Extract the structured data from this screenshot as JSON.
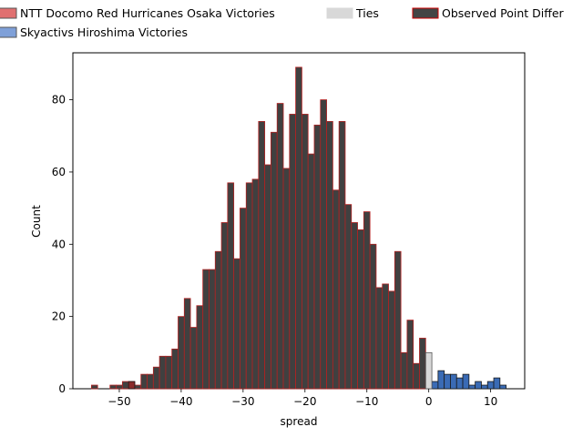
{
  "chart_data": {
    "type": "bar",
    "title": "",
    "xlabel": "spread",
    "ylabel": "Count",
    "xlim": [
      -57.5,
      15.5
    ],
    "ylim": [
      0,
      93
    ],
    "xticks": [
      -50,
      -40,
      -30,
      -20,
      -10,
      0,
      10
    ],
    "yticks": [
      0,
      20,
      40,
      60,
      80
    ],
    "xtick_labels": [
      "−50",
      "−40",
      "−30",
      "−20",
      "−10",
      "0",
      "10"
    ],
    "ytick_labels": [
      "0",
      "20",
      "40",
      "60",
      "80"
    ],
    "grid": false,
    "legend_placement": "top",
    "legend": [
      {
        "label": "NTT Docomo Red Hurricanes Osaka Victories",
        "color": "#e07070",
        "edge": "#555555"
      },
      {
        "label": "Skyactivs Hiroshima Victories",
        "color": "#7fa0d8",
        "edge": "#555555"
      },
      {
        "label": "Ties",
        "color": "#d8d8d8",
        "edge": "#d8d8d8"
      },
      {
        "label": "Observed Point Differ",
        "color": "#444444",
        "edge": "#cc0000"
      }
    ],
    "colors": {
      "observed_fill": "#404040",
      "observed_edge": "#b22222",
      "skyactivs_fill": "#3a6bb5",
      "ties_fill": "#d8d8d8",
      "ntt_fill": "#8b2a2a"
    },
    "series": [
      {
        "name": "Observed Point Differ",
        "x": [
          -54,
          -51,
          -50,
          -49,
          -48,
          -47,
          -46,
          -45,
          -44,
          -43,
          -42,
          -41,
          -40,
          -39,
          -38,
          -37,
          -36,
          -35,
          -34,
          -33,
          -32,
          -31,
          -30,
          -29,
          -28,
          -27,
          -26,
          -25,
          -24,
          -23,
          -22,
          -21,
          -20,
          -19,
          -18,
          -17,
          -16,
          -15,
          -14,
          -13,
          -12,
          -11,
          -10,
          -9,
          -8,
          -7,
          -6,
          -5,
          -4,
          -3,
          -2,
          -1
        ],
        "values": [
          1,
          1,
          1,
          2,
          2,
          1,
          4,
          4,
          6,
          9,
          9,
          11,
          20,
          25,
          17,
          23,
          33,
          33,
          38,
          46,
          57,
          36,
          50,
          57,
          58,
          74,
          62,
          71,
          79,
          61,
          76,
          89,
          76,
          65,
          73,
          80,
          74,
          55,
          74,
          51,
          46,
          44,
          49,
          40,
          28,
          29,
          27,
          38,
          10,
          19,
          7,
          14
        ]
      },
      {
        "name": "Skyactivs Hiroshima Victories",
        "x": [
          1,
          2,
          3,
          4,
          5,
          6,
          7,
          8,
          9,
          10,
          11,
          12
        ],
        "values": [
          2,
          5,
          4,
          4,
          3,
          4,
          1,
          2,
          1,
          2,
          3,
          1
        ]
      },
      {
        "name": "Ties",
        "x": [
          0
        ],
        "values": [
          10
        ]
      },
      {
        "name": "NTT Docomo Red Hurricanes Osaka Victories",
        "x": [
          -48
        ],
        "values": [
          2
        ]
      }
    ]
  }
}
